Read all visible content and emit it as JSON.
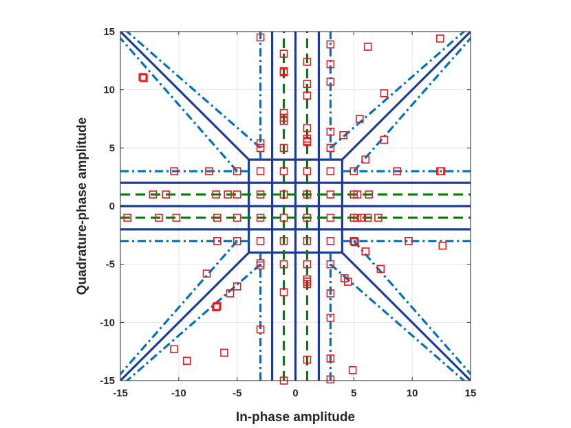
{
  "chart_data": {
    "type": "scatter",
    "title": "",
    "xlabel": "In-phase amplitude",
    "ylabel": "Quadrature-phase amplitude",
    "xlim": [
      -15,
      15
    ],
    "ylim": [
      -15,
      15
    ],
    "xticks": [
      -15,
      -10,
      -5,
      0,
      5,
      10,
      15
    ],
    "yticks": [
      -15,
      -10,
      -5,
      0,
      5,
      10,
      15
    ],
    "xtick_labels": [
      "-15",
      "-10",
      "-5",
      "0",
      "5",
      "10",
      "15"
    ],
    "ytick_labels": [
      "-15",
      "-10",
      "-5",
      "0",
      "5",
      "10",
      "15"
    ],
    "grid": true,
    "legend": "none",
    "colors": {
      "boundary_solid": "#1f3a93",
      "boundary_dashdot": "#0072bd",
      "boundary_dashed": "#008000",
      "markers": "#e8171c",
      "grid": "#e5e5e5",
      "axes": "#262626"
    },
    "series": [
      {
        "style": "solid",
        "segments": [
          [
            [
              -15,
              2
            ],
            [
              15,
              2
            ]
          ],
          [
            [
              -15,
              0
            ],
            [
              15,
              0
            ]
          ],
          [
            [
              -15,
              -2
            ],
            [
              15,
              -2
            ]
          ],
          [
            [
              -2,
              -15
            ],
            [
              -2,
              15
            ]
          ],
          [
            [
              0,
              -15
            ],
            [
              0,
              15
            ]
          ],
          [
            [
              2,
              -15
            ],
            [
              2,
              15
            ]
          ],
          [
            [
              -4,
              -4
            ],
            [
              -4,
              4
            ]
          ],
          [
            [
              4,
              -4
            ],
            [
              4,
              4
            ]
          ],
          [
            [
              -4,
              4
            ],
            [
              4,
              4
            ]
          ],
          [
            [
              -4,
              -4
            ],
            [
              4,
              -4
            ]
          ],
          [
            [
              -4,
              4
            ],
            [
              -15,
              15
            ]
          ],
          [
            [
              4,
              4
            ],
            [
              15,
              15
            ]
          ],
          [
            [
              -4,
              -4
            ],
            [
              -15,
              -15
            ]
          ],
          [
            [
              4,
              -4
            ],
            [
              15,
              -15
            ]
          ]
        ]
      },
      {
        "style": "dashdot",
        "segments": [
          [
            [
              4,
              3
            ],
            [
              15,
              3
            ]
          ],
          [
            [
              -15,
              3
            ],
            [
              -4,
              3
            ]
          ],
          [
            [
              4,
              -3
            ],
            [
              15,
              -3
            ]
          ],
          [
            [
              -15,
              -3
            ],
            [
              -4,
              -3
            ]
          ],
          [
            [
              3,
              4
            ],
            [
              3,
              15
            ]
          ],
          [
            [
              -3,
              4
            ],
            [
              -3,
              15
            ]
          ],
          [
            [
              3,
              -15
            ],
            [
              3,
              -4
            ]
          ],
          [
            [
              -3,
              -15
            ],
            [
              -3,
              -4
            ]
          ],
          [
            [
              3,
              5
            ],
            [
              15,
              15.5
            ]
          ],
          [
            [
              5,
              3
            ],
            [
              15.5,
              15
            ]
          ],
          [
            [
              -3,
              5
            ],
            [
              -15,
              15.5
            ]
          ],
          [
            [
              -5,
              3
            ],
            [
              -15.5,
              15
            ]
          ],
          [
            [
              3,
              -5
            ],
            [
              15,
              -15.5
            ]
          ],
          [
            [
              5,
              -3
            ],
            [
              15.5,
              -15
            ]
          ],
          [
            [
              -3,
              -5
            ],
            [
              -15,
              -15.5
            ]
          ],
          [
            [
              -5,
              -3
            ],
            [
              -15.5,
              -15
            ]
          ]
        ]
      },
      {
        "style": "dashed",
        "segments": [
          [
            [
              -15,
              1
            ],
            [
              15,
              1
            ]
          ],
          [
            [
              -15,
              -1
            ],
            [
              15,
              -1
            ]
          ],
          [
            [
              -1,
              -15
            ],
            [
              -1,
              15
            ]
          ],
          [
            [
              1,
              -15
            ],
            [
              1,
              15
            ]
          ]
        ]
      },
      {
        "style": "markers",
        "marker": "square",
        "points": [
          [
            -3,
            3
          ],
          [
            -1,
            3
          ],
          [
            1,
            3
          ],
          [
            3,
            3
          ],
          [
            -3,
            1
          ],
          [
            -1,
            1
          ],
          [
            1,
            1
          ],
          [
            3,
            1
          ],
          [
            -3,
            -1
          ],
          [
            -1,
            -1
          ],
          [
            1,
            -1
          ],
          [
            3,
            -1
          ],
          [
            -3,
            -3
          ],
          [
            -1,
            -3
          ],
          [
            1,
            -3
          ],
          [
            3,
            -3
          ],
          [
            -3,
            14.5
          ],
          [
            -1,
            13.1
          ],
          [
            -1,
            11.6
          ],
          [
            -1,
            11.5
          ],
          [
            1,
            12.4
          ],
          [
            1,
            10.5
          ],
          [
            1,
            9.5
          ],
          [
            3,
            13.9
          ],
          [
            3,
            12.2
          ],
          [
            3,
            10.7
          ],
          [
            6.2,
            13.7
          ],
          [
            12.4,
            14.4
          ],
          [
            -13.1,
            11.1
          ],
          [
            -13,
            11
          ],
          [
            -1,
            8
          ],
          [
            -1,
            7.6
          ],
          [
            -1,
            7.3
          ],
          [
            -3,
            5.4
          ],
          [
            -3,
            5
          ],
          [
            -1,
            5
          ],
          [
            1,
            6.7
          ],
          [
            1,
            5.8
          ],
          [
            1,
            5.6
          ],
          [
            1,
            5.5
          ],
          [
            3,
            6.4
          ],
          [
            3,
            5
          ],
          [
            4.1,
            6.1
          ],
          [
            5.5,
            7.5
          ],
          [
            7.6,
            9.7
          ],
          [
            7.6,
            5.7
          ],
          [
            6,
            4
          ],
          [
            -10.4,
            3
          ],
          [
            -7.4,
            3
          ],
          [
            -5,
            3
          ],
          [
            5,
            3
          ],
          [
            8.7,
            3
          ],
          [
            12.4,
            3
          ],
          [
            12.5,
            3
          ],
          [
            -12.2,
            1
          ],
          [
            -11.1,
            1
          ],
          [
            -6.8,
            1
          ],
          [
            -5.8,
            1
          ],
          [
            -5,
            1
          ],
          [
            5,
            1
          ],
          [
            5.3,
            1
          ],
          [
            6.3,
            1
          ],
          [
            -14.4,
            -1
          ],
          [
            -11.7,
            -1
          ],
          [
            -10.2,
            -1
          ],
          [
            -6.7,
            -1
          ],
          [
            -5,
            -1
          ],
          [
            5,
            -1
          ],
          [
            5.3,
            -1
          ],
          [
            5.7,
            -1
          ],
          [
            6.2,
            -1
          ],
          [
            7.1,
            -1
          ],
          [
            -6.7,
            -3
          ],
          [
            -5,
            -3
          ],
          [
            5,
            -3
          ],
          [
            5.1,
            -3.1
          ],
          [
            9.7,
            -3
          ],
          [
            12.6,
            -3.4
          ],
          [
            6,
            -3.9
          ],
          [
            -3,
            -4.9
          ],
          [
            -3,
            -5.1
          ],
          [
            -7.6,
            -5.8
          ],
          [
            -5,
            -6.9
          ],
          [
            -5.6,
            -7.5
          ],
          [
            -6.8,
            -8.7
          ],
          [
            -6.7,
            -8.6
          ],
          [
            -1,
            -5
          ],
          [
            -1,
            -7.4
          ],
          [
            1,
            -5
          ],
          [
            1,
            -6.3
          ],
          [
            1,
            -6.5
          ],
          [
            1,
            -6.7
          ],
          [
            3,
            -5
          ],
          [
            4.2,
            -6.2
          ],
          [
            4.5,
            -6.5
          ],
          [
            7.3,
            -5.4
          ],
          [
            3,
            -7.5
          ],
          [
            3,
            -9.6
          ],
          [
            -3,
            -10.6
          ],
          [
            -6.1,
            -12.6
          ],
          [
            -10.4,
            -12.3
          ],
          [
            -9.3,
            -13.3
          ],
          [
            -1,
            -15
          ],
          [
            1,
            -13.2
          ],
          [
            3,
            -13.1
          ],
          [
            3,
            -14.9
          ],
          [
            4.9,
            -14.1
          ]
        ]
      }
    ]
  }
}
